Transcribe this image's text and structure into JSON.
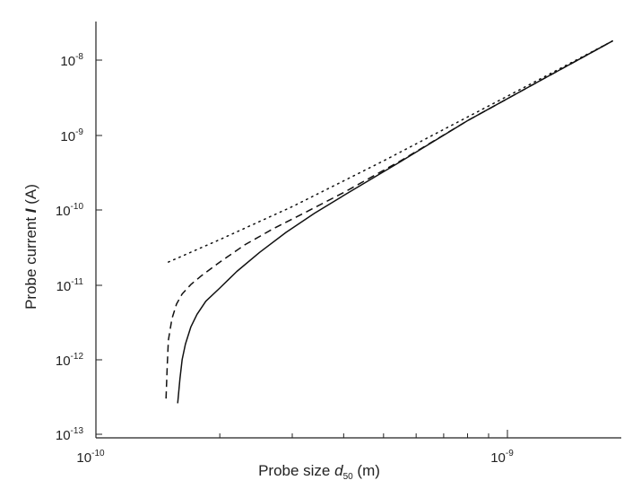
{
  "chart_data": {
    "type": "line",
    "title": "",
    "xlabel": {
      "prefix": "Probe size ",
      "var": "d",
      "sub": "50",
      "suffix": " (m)"
    },
    "ylabel": {
      "prefix": "Probe current ",
      "var": "I",
      "suffix": " (A)"
    },
    "xscale": "log",
    "yscale": "log",
    "xlim": [
      1e-10,
      1.8e-09
    ],
    "ylim": [
      1e-13,
      2.2e-08
    ],
    "x_ticks": [
      {
        "mantissa": "10",
        "exp": "-10"
      },
      {
        "mantissa": "10",
        "exp": "-9"
      }
    ],
    "y_ticks": [
      {
        "mantissa": "10",
        "exp": "-13"
      },
      {
        "mantissa": "10",
        "exp": "-12"
      },
      {
        "mantissa": "10",
        "exp": "-11"
      },
      {
        "mantissa": "10",
        "exp": "-10"
      },
      {
        "mantissa": "10",
        "exp": "-9"
      },
      {
        "mantissa": "10",
        "exp": "-8"
      }
    ],
    "grid": false,
    "legend": "none",
    "series": [
      {
        "style": "dotted",
        "x": [
          1.5e-10,
          2e-10,
          3e-10,
          5e-10,
          1e-09,
          1.8e-09
        ],
        "y": [
          2e-11,
          4e-11,
          1.1e-10,
          4.5e-10,
          3.3e-09,
          1.8e-08
        ]
      },
      {
        "style": "dashed",
        "x": [
          1.48e-10,
          1.49e-10,
          1.5e-10,
          1.53e-10,
          1.57e-10,
          1.62e-10,
          1.7e-10,
          1.8e-10,
          2e-10,
          2.3e-10,
          2.7e-10,
          3.2e-10,
          4e-10,
          5.5e-10,
          8e-10,
          1.2e-09,
          1.8e-09
        ],
        "y": [
          3e-13,
          8e-13,
          1.8e-12,
          3.5e-12,
          5.5e-12,
          7.5e-12,
          1e-11,
          1.3e-11,
          2e-11,
          3.4e-11,
          5.6e-11,
          9e-11,
          1.7e-10,
          4.5e-10,
          1.55e-09,
          5.3e-09,
          1.8e-08
        ]
      },
      {
        "style": "solid",
        "x": [
          1.58e-10,
          1.6e-10,
          1.62e-10,
          1.65e-10,
          1.7e-10,
          1.76e-10,
          1.85e-10,
          2e-10,
          2.2e-10,
          2.5e-10,
          2.9e-10,
          3.4e-10,
          4e-10,
          5.5e-10,
          8e-10,
          1.2e-09,
          1.8e-09
        ],
        "y": [
          2.6e-13,
          5.5e-13,
          1e-12,
          1.6e-12,
          2.7e-12,
          4e-12,
          6e-12,
          9e-12,
          1.5e-11,
          2.7e-11,
          5e-11,
          9e-11,
          1.55e-10,
          4.4e-10,
          1.55e-09,
          5.3e-09,
          1.8e-08
        ]
      }
    ]
  }
}
